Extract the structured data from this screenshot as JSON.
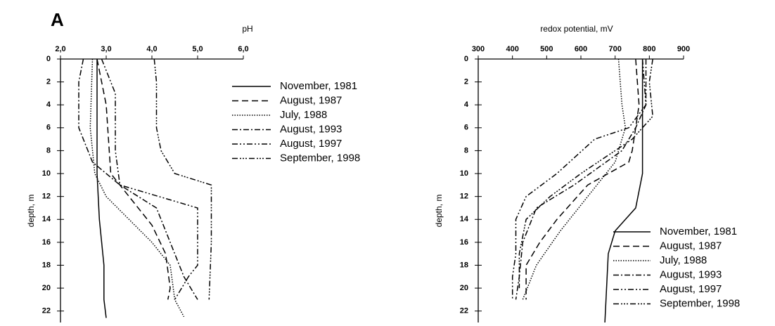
{
  "chart_data": [
    {
      "type": "line",
      "panel_label": "A",
      "xlabel": "pH",
      "ylabel": "depth, m",
      "xlim": [
        2,
        6
      ],
      "xticks": [
        {
          "value": 2,
          "label": "2,0"
        },
        {
          "value": 3,
          "label": "3,0"
        },
        {
          "value": 4,
          "label": "4,0"
        },
        {
          "value": 5,
          "label": "5,0"
        },
        {
          "value": 6,
          "label": "6,0"
        }
      ],
      "ylim": [
        0,
        23
      ],
      "yticks": [
        0,
        2,
        4,
        6,
        8,
        10,
        12,
        14,
        16,
        18,
        20,
        22
      ],
      "y_inverted": true,
      "series": [
        {
          "name": "November, 1981",
          "color": "#000",
          "style": "solid",
          "y": [
            0,
            10,
            14,
            18,
            21,
            22.6
          ],
          "values": [
            2.8,
            2.8,
            2.85,
            2.95,
            2.95,
            3.0
          ]
        },
        {
          "name": "August, 1987",
          "color": "#000",
          "style": "dashed",
          "y": [
            0,
            4,
            10,
            12,
            14.5,
            17,
            20,
            21
          ],
          "values": [
            2.8,
            3.0,
            3.1,
            3.5,
            4.0,
            4.3,
            4.4,
            4.35
          ]
        },
        {
          "name": "July, 1988",
          "color": "#000",
          "style": "dotted",
          "y": [
            0,
            6,
            10,
            12,
            14,
            16,
            18,
            21,
            22.5
          ],
          "values": [
            2.7,
            2.65,
            2.75,
            3.0,
            3.5,
            4.0,
            4.4,
            4.5,
            4.7
          ]
        },
        {
          "name": "August, 1993",
          "color": "#000",
          "style": "dashdot",
          "y": [
            0,
            2,
            6,
            9,
            11,
            13,
            16,
            19,
            21
          ],
          "values": [
            2.5,
            2.4,
            2.4,
            2.7,
            3.3,
            4.1,
            4.4,
            4.7,
            5.0
          ]
        },
        {
          "name": "August, 1997",
          "color": "#000",
          "style": "dashdotdot",
          "y": [
            0,
            3,
            8,
            11,
            13,
            18,
            19,
            21
          ],
          "values": [
            2.9,
            3.2,
            3.2,
            3.3,
            5.0,
            5.0,
            4.8,
            4.5
          ]
        },
        {
          "name": "September, 1998",
          "color": "#000",
          "style": "dashdotdotdot",
          "y": [
            0,
            2,
            6,
            8,
            10,
            11,
            16,
            21
          ],
          "values": [
            4.05,
            4.1,
            4.1,
            4.2,
            4.5,
            5.3,
            5.3,
            5.25
          ]
        }
      ]
    },
    {
      "type": "line",
      "xlabel": "redox potential, mV",
      "ylabel": "depth, m",
      "xlim": [
        300,
        900
      ],
      "xticks": [
        300,
        400,
        500,
        600,
        700,
        800,
        900
      ],
      "ylim": [
        0,
        23
      ],
      "yticks": [
        0,
        2,
        4,
        6,
        8,
        10,
        12,
        14,
        16,
        18,
        20,
        22
      ],
      "y_inverted": true,
      "series": [
        {
          "name": "November, 1981",
          "color": "#000",
          "style": "solid",
          "y": [
            0,
            10,
            13,
            15,
            17,
            23
          ],
          "values": [
            780,
            780,
            760,
            700,
            680,
            670
          ]
        },
        {
          "name": "August, 1987",
          "color": "#000",
          "style": "dashed",
          "y": [
            0,
            4,
            6,
            8,
            9,
            11,
            14,
            16,
            18,
            21
          ],
          "values": [
            760,
            770,
            760,
            750,
            740,
            620,
            530,
            480,
            440,
            440
          ]
        },
        {
          "name": "July, 1988",
          "color": "#000",
          "style": "dotted",
          "y": [
            0,
            4,
            6,
            8,
            9,
            12,
            15,
            18,
            21
          ],
          "values": [
            710,
            720,
            730,
            710,
            700,
            620,
            540,
            470,
            430
          ]
        },
        {
          "name": "August, 1993",
          "color": "#000",
          "style": "dashdot",
          "y": [
            0,
            4,
            6,
            8,
            11,
            13,
            16,
            19,
            21
          ],
          "values": [
            790,
            790,
            760,
            720,
            580,
            470,
            430,
            420,
            410
          ]
        },
        {
          "name": "August, 1997",
          "color": "#000",
          "style": "dashdotdot",
          "y": [
            0,
            4,
            6,
            7,
            10,
            12,
            14,
            17,
            19,
            21
          ],
          "values": [
            780,
            790,
            740,
            640,
            530,
            440,
            410,
            410,
            400,
            400
          ]
        },
        {
          "name": "September, 1998",
          "color": "#000",
          "style": "dashdotdotdot",
          "y": [
            0,
            2,
            5,
            7,
            8,
            10,
            12,
            14,
            17,
            20
          ],
          "values": [
            810,
            800,
            810,
            750,
            700,
            600,
            510,
            440,
            420,
            420
          ]
        }
      ]
    }
  ]
}
